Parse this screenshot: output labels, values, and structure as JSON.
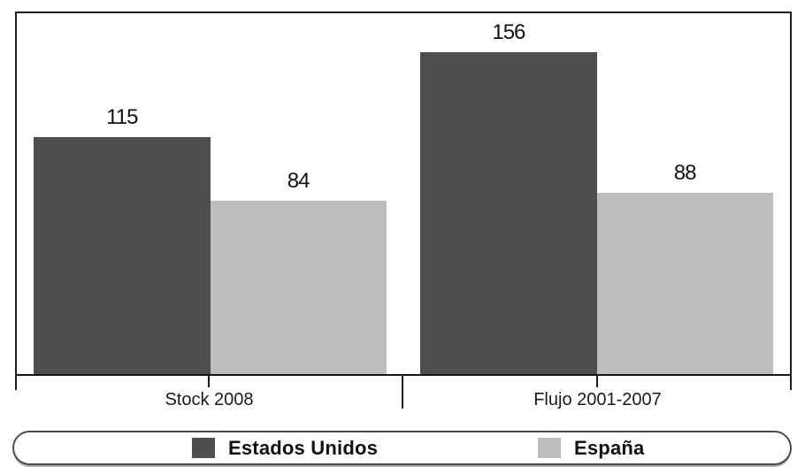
{
  "chart_data": {
    "type": "bar",
    "title": "",
    "xlabel": "",
    "ylabel": "",
    "categories": [
      "Stock 2008",
      "Flujo 2001-2007"
    ],
    "series": [
      {
        "name": "Estados Unidos",
        "color": "#4e4e50",
        "values": [
          115,
          156
        ]
      },
      {
        "name": "España",
        "color": "#bcbdbf",
        "values": [
          84,
          88
        ]
      }
    ],
    "ylim": [
      0,
      175
    ],
    "grid": false,
    "value_labels_shown": true,
    "legend_position": "bottom",
    "axis_color": "#1c1c1e",
    "background_color": "#ffffff"
  }
}
